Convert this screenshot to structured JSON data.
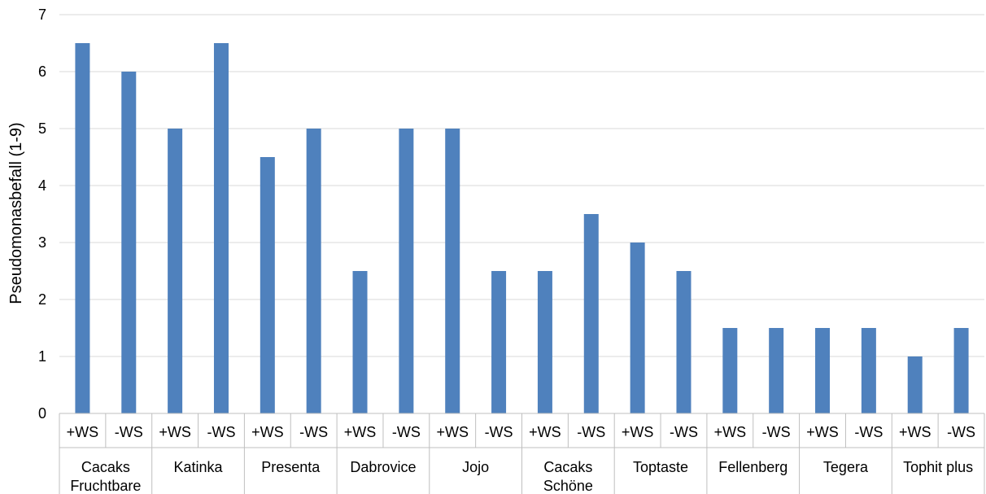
{
  "chart_data": {
    "type": "bar",
    "ylabel": "Pseudomonasbefall (1-9)",
    "xlabel": "",
    "ylim": [
      0,
      7
    ],
    "yticks": [
      0,
      1,
      2,
      3,
      4,
      5,
      6,
      7
    ],
    "grid": true,
    "legend": "none",
    "bar_color": "#4F81BD",
    "groups": [
      {
        "label": [
          "Cacaks",
          "Fruchtbare"
        ],
        "categories": [
          "+WS",
          "-WS"
        ],
        "values": [
          6.5,
          6
        ]
      },
      {
        "label": [
          "Katinka"
        ],
        "categories": [
          "+WS",
          "-WS"
        ],
        "values": [
          5,
          6.5
        ]
      },
      {
        "label": [
          "Presenta"
        ],
        "categories": [
          "+WS",
          "-WS"
        ],
        "values": [
          4.5,
          5
        ]
      },
      {
        "label": [
          "Dabrovice"
        ],
        "categories": [
          "+WS",
          "-WS"
        ],
        "values": [
          2.5,
          5
        ]
      },
      {
        "label": [
          "Jojo"
        ],
        "categories": [
          "+WS",
          "-WS"
        ],
        "values": [
          5,
          2.5
        ]
      },
      {
        "label": [
          "Cacaks",
          "Schöne"
        ],
        "categories": [
          "+WS",
          "-WS"
        ],
        "values": [
          2.5,
          3.5
        ]
      },
      {
        "label": [
          "Toptaste"
        ],
        "categories": [
          "+WS",
          "-WS"
        ],
        "values": [
          3,
          2.5
        ]
      },
      {
        "label": [
          "Fellenberg"
        ],
        "categories": [
          "+WS",
          "-WS"
        ],
        "values": [
          1.5,
          1.5
        ]
      },
      {
        "label": [
          "Tegera"
        ],
        "categories": [
          "+WS",
          "-WS"
        ],
        "values": [
          1.5,
          1.5
        ]
      },
      {
        "label": [
          "Tophit plus"
        ],
        "categories": [
          "+WS",
          "-WS"
        ],
        "values": [
          1,
          1.5
        ]
      }
    ]
  }
}
